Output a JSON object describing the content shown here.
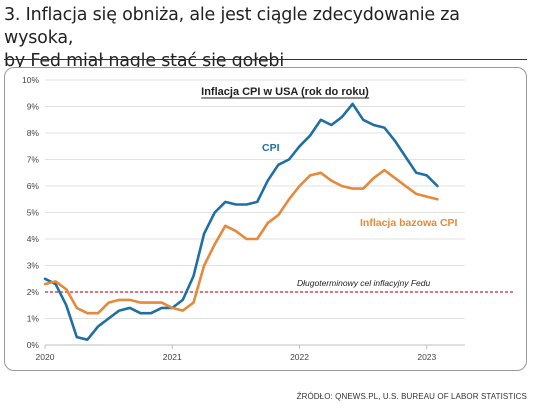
{
  "headline": {
    "line1": "3. Inflacja się obniża, ale jest ciągle zdecydowanie za wysoka,",
    "line2": "by Fed miał nagle stać się gołębi"
  },
  "source": "ŹRÓDŁO: QNEWS.PL, U.S. BUREAU OF LABOR STATISTICS",
  "chart_data": {
    "type": "line",
    "title": "Inflacja CPI w USA (rok do roku)",
    "xlabel": "",
    "ylabel": "",
    "ylim": [
      0,
      10
    ],
    "xlim": [
      2020.0,
      2023.3
    ],
    "yticks": [
      0,
      1,
      2,
      3,
      4,
      5,
      6,
      7,
      8,
      9,
      10
    ],
    "ytick_labels": [
      "0%",
      "1%",
      "2%",
      "3%",
      "4%",
      "5%",
      "6%",
      "7%",
      "8%",
      "9%",
      "10%"
    ],
    "xticks": [
      2020,
      2021,
      2022,
      2023
    ],
    "xtick_labels": [
      "2020",
      "2021",
      "2022",
      "2023"
    ],
    "grid": "horizontal",
    "reference_line": {
      "value": 2,
      "label": "Długoterminowy cel inflacyjny Fedu",
      "color": "#c0273a"
    },
    "series": [
      {
        "name": "CPI",
        "color": "#1f6fa5",
        "points": [
          [
            2020.0,
            2.5
          ],
          [
            2020.083,
            2.3
          ],
          [
            2020.167,
            1.5
          ],
          [
            2020.25,
            0.3
          ],
          [
            2020.333,
            0.2
          ],
          [
            2020.417,
            0.7
          ],
          [
            2020.5,
            1.0
          ],
          [
            2020.583,
            1.3
          ],
          [
            2020.667,
            1.4
          ],
          [
            2020.75,
            1.2
          ],
          [
            2020.833,
            1.2
          ],
          [
            2020.917,
            1.4
          ],
          [
            2021.0,
            1.4
          ],
          [
            2021.083,
            1.7
          ],
          [
            2021.167,
            2.6
          ],
          [
            2021.25,
            4.2
          ],
          [
            2021.333,
            5.0
          ],
          [
            2021.417,
            5.4
          ],
          [
            2021.5,
            5.3
          ],
          [
            2021.583,
            5.3
          ],
          [
            2021.667,
            5.4
          ],
          [
            2021.75,
            6.2
          ],
          [
            2021.833,
            6.8
          ],
          [
            2021.917,
            7.0
          ],
          [
            2022.0,
            7.5
          ],
          [
            2022.083,
            7.9
          ],
          [
            2022.167,
            8.5
          ],
          [
            2022.25,
            8.3
          ],
          [
            2022.333,
            8.6
          ],
          [
            2022.417,
            9.1
          ],
          [
            2022.5,
            8.5
          ],
          [
            2022.583,
            8.3
          ],
          [
            2022.667,
            8.2
          ],
          [
            2022.75,
            7.7
          ],
          [
            2022.833,
            7.1
          ],
          [
            2022.917,
            6.5
          ],
          [
            2023.0,
            6.4
          ],
          [
            2023.083,
            6.0
          ]
        ]
      },
      {
        "name": "Inflacja bazowa CPI",
        "color": "#e5893a",
        "points": [
          [
            2020.0,
            2.3
          ],
          [
            2020.083,
            2.4
          ],
          [
            2020.167,
            2.1
          ],
          [
            2020.25,
            1.4
          ],
          [
            2020.333,
            1.2
          ],
          [
            2020.417,
            1.2
          ],
          [
            2020.5,
            1.6
          ],
          [
            2020.583,
            1.7
          ],
          [
            2020.667,
            1.7
          ],
          [
            2020.75,
            1.6
          ],
          [
            2020.833,
            1.6
          ],
          [
            2020.917,
            1.6
          ],
          [
            2021.0,
            1.4
          ],
          [
            2021.083,
            1.3
          ],
          [
            2021.167,
            1.6
          ],
          [
            2021.25,
            3.0
          ],
          [
            2021.333,
            3.8
          ],
          [
            2021.417,
            4.5
          ],
          [
            2021.5,
            4.3
          ],
          [
            2021.583,
            4.0
          ],
          [
            2021.667,
            4.0
          ],
          [
            2021.75,
            4.6
          ],
          [
            2021.833,
            4.9
          ],
          [
            2021.917,
            5.5
          ],
          [
            2022.0,
            6.0
          ],
          [
            2022.083,
            6.4
          ],
          [
            2022.167,
            6.5
          ],
          [
            2022.25,
            6.2
          ],
          [
            2022.333,
            6.0
          ],
          [
            2022.417,
            5.9
          ],
          [
            2022.5,
            5.9
          ],
          [
            2022.583,
            6.3
          ],
          [
            2022.667,
            6.6
          ],
          [
            2022.75,
            6.3
          ],
          [
            2022.833,
            6.0
          ],
          [
            2022.917,
            5.7
          ],
          [
            2023.0,
            5.6
          ],
          [
            2023.083,
            5.5
          ]
        ]
      }
    ]
  }
}
